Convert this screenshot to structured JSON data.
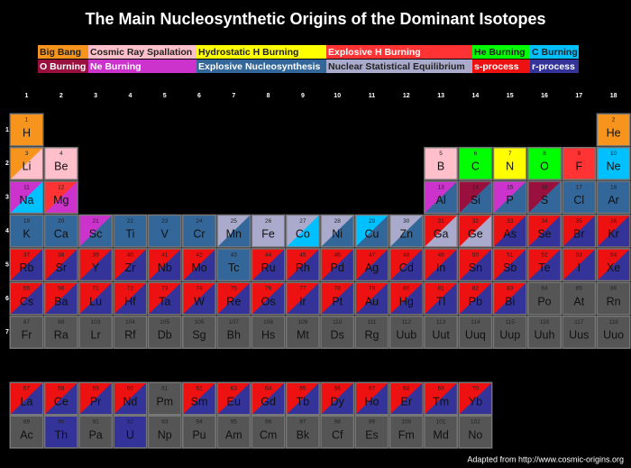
{
  "title": "The Main Nucleosynthetic Origins of the Dominant Isotopes",
  "legend": [
    {
      "label": "Big Bang",
      "color": "#f7941d"
    },
    {
      "label": "Cosmic Ray Spallation",
      "color": "#ffc0cb"
    },
    {
      "label": "Hydrostatic H Burning",
      "color": "#ffff00"
    },
    {
      "label": "Explosive H Burning",
      "color": "#ff3333"
    },
    {
      "label": "He Burning",
      "color": "#00ff00"
    },
    {
      "label": "C Burning",
      "color": "#00c0ff"
    },
    {
      "label": "O Burning",
      "color": "#990f3d"
    },
    {
      "label": "Ne Burning",
      "color": "#cc33cc"
    },
    {
      "label": "Explosive Nucleosynthesis",
      "color": "#336699"
    },
    {
      "label": "Nuclear Statistical Equilibrium",
      "color": "#aaaacc"
    },
    {
      "label": "s-process",
      "color": "#ee1111"
    },
    {
      "label": "r-process",
      "color": "#333399"
    }
  ],
  "groups": [
    1,
    2,
    3,
    4,
    5,
    6,
    7,
    8,
    9,
    10,
    11,
    12,
    13,
    14,
    15,
    16,
    17,
    18
  ],
  "periods": [
    1,
    2,
    3,
    4,
    5,
    6,
    7
  ],
  "elements": [
    {
      "n": 1,
      "s": "H",
      "c": [
        "#f7941d"
      ]
    },
    {
      "n": 2,
      "s": "He",
      "c": [
        "#f7941d"
      ]
    },
    {
      "n": 3,
      "s": "Li",
      "c": [
        "#f7941d",
        "#ffc0cb"
      ]
    },
    {
      "n": 4,
      "s": "Be",
      "c": [
        "#ffc0cb"
      ]
    },
    {
      "n": 5,
      "s": "B",
      "c": [
        "#ffc0cb"
      ]
    },
    {
      "n": 6,
      "s": "C",
      "c": [
        "#00ff00"
      ]
    },
    {
      "n": 7,
      "s": "N",
      "c": [
        "#ffff00"
      ]
    },
    {
      "n": 8,
      "s": "O",
      "c": [
        "#00ff00"
      ]
    },
    {
      "n": 9,
      "s": "F",
      "c": [
        "#ff3333"
      ]
    },
    {
      "n": 10,
      "s": "Ne",
      "c": [
        "#00c0ff"
      ]
    },
    {
      "n": 11,
      "s": "Na",
      "c": [
        "#cc33cc",
        "#00c0ff"
      ]
    },
    {
      "n": 12,
      "s": "Mg",
      "c": [
        "#ff3333",
        "#cc33cc"
      ]
    },
    {
      "n": 13,
      "s": "Al",
      "c": [
        "#cc33cc",
        "#336699"
      ]
    },
    {
      "n": 14,
      "s": "Si",
      "c": [
        "#990f3d",
        "#336699"
      ]
    },
    {
      "n": 15,
      "s": "P",
      "c": [
        "#cc33cc",
        "#336699"
      ]
    },
    {
      "n": 16,
      "s": "S",
      "c": [
        "#990f3d",
        "#336699"
      ]
    },
    {
      "n": 17,
      "s": "Cl",
      "c": [
        "#336699"
      ]
    },
    {
      "n": 18,
      "s": "Ar",
      "c": [
        "#336699"
      ]
    },
    {
      "n": 19,
      "s": "K",
      "c": [
        "#336699"
      ]
    },
    {
      "n": 20,
      "s": "Ca",
      "c": [
        "#336699"
      ]
    },
    {
      "n": 21,
      "s": "Sc",
      "c": [
        "#cc33cc",
        "#336699"
      ]
    },
    {
      "n": 22,
      "s": "Ti",
      "c": [
        "#336699"
      ]
    },
    {
      "n": 23,
      "s": "V",
      "c": [
        "#336699"
      ]
    },
    {
      "n": 24,
      "s": "Cr",
      "c": [
        "#336699"
      ]
    },
    {
      "n": 25,
      "s": "Mn",
      "c": [
        "#aaaacc",
        "#336699"
      ]
    },
    {
      "n": 26,
      "s": "Fe",
      "c": [
        "#aaaacc"
      ]
    },
    {
      "n": 27,
      "s": "Co",
      "c": [
        "#aaaacc",
        "#00c0ff"
      ]
    },
    {
      "n": 28,
      "s": "Ni",
      "c": [
        "#aaaacc",
        "#336699"
      ]
    },
    {
      "n": 29,
      "s": "Cu",
      "c": [
        "#00c0ff",
        "#336699"
      ]
    },
    {
      "n": 30,
      "s": "Zn",
      "c": [
        "#aaaacc",
        "#336699"
      ]
    },
    {
      "n": 31,
      "s": "Ga",
      "c": [
        "#ee1111",
        "#aaaacc"
      ]
    },
    {
      "n": 32,
      "s": "Ge",
      "c": [
        "#ee1111",
        "#aaaacc"
      ]
    },
    {
      "n": 33,
      "s": "As",
      "c": [
        "#ee1111",
        "#333399"
      ]
    },
    {
      "n": 34,
      "s": "Se",
      "c": [
        "#ee1111",
        "#333399"
      ]
    },
    {
      "n": 35,
      "s": "Br",
      "c": [
        "#ee1111",
        "#333399"
      ]
    },
    {
      "n": 36,
      "s": "Kr",
      "c": [
        "#ee1111",
        "#333399"
      ]
    },
    {
      "n": 37,
      "s": "Rb",
      "c": [
        "#ee1111",
        "#333399"
      ]
    },
    {
      "n": 38,
      "s": "Sr",
      "c": [
        "#ee1111",
        "#333399"
      ]
    },
    {
      "n": 39,
      "s": "Y",
      "c": [
        "#ee1111",
        "#333399"
      ]
    },
    {
      "n": 40,
      "s": "Zr",
      "c": [
        "#ee1111",
        "#333399"
      ]
    },
    {
      "n": 41,
      "s": "Nb",
      "c": [
        "#ee1111",
        "#333399"
      ]
    },
    {
      "n": 42,
      "s": "Mo",
      "c": [
        "#ee1111",
        "#333399"
      ]
    },
    {
      "n": 43,
      "s": "Tc",
      "c": [
        "#336699"
      ]
    },
    {
      "n": 44,
      "s": "Ru",
      "c": [
        "#ee1111",
        "#333399"
      ]
    },
    {
      "n": 45,
      "s": "Rh",
      "c": [
        "#ee1111",
        "#333399"
      ]
    },
    {
      "n": 46,
      "s": "Pd",
      "c": [
        "#ee1111",
        "#333399"
      ]
    },
    {
      "n": 47,
      "s": "Ag",
      "c": [
        "#ee1111",
        "#333399"
      ]
    },
    {
      "n": 48,
      "s": "Cd",
      "c": [
        "#ee1111",
        "#333399"
      ]
    },
    {
      "n": 49,
      "s": "In",
      "c": [
        "#ee1111",
        "#333399"
      ]
    },
    {
      "n": 50,
      "s": "Sn",
      "c": [
        "#ee1111",
        "#333399"
      ]
    },
    {
      "n": 51,
      "s": "Sb",
      "c": [
        "#ee1111",
        "#333399"
      ]
    },
    {
      "n": 52,
      "s": "Te",
      "c": [
        "#ee1111",
        "#333399"
      ]
    },
    {
      "n": 53,
      "s": "I",
      "c": [
        "#ee1111",
        "#333399"
      ]
    },
    {
      "n": 54,
      "s": "Xe",
      "c": [
        "#ee1111",
        "#333399"
      ]
    },
    {
      "n": 55,
      "s": "Cs",
      "c": [
        "#ee1111",
        "#333399"
      ]
    },
    {
      "n": 56,
      "s": "Ba",
      "c": [
        "#ee1111",
        "#333399"
      ]
    },
    {
      "n": 57,
      "s": "La",
      "c": [
        "#ee1111",
        "#333399"
      ]
    },
    {
      "n": 58,
      "s": "Ce",
      "c": [
        "#ee1111",
        "#333399"
      ]
    },
    {
      "n": 59,
      "s": "Pr",
      "c": [
        "#ee1111",
        "#333399"
      ]
    },
    {
      "n": 60,
      "s": "Nd",
      "c": [
        "#ee1111",
        "#333399"
      ]
    },
    {
      "n": 61,
      "s": "Pm",
      "c": [
        "#555555"
      ]
    },
    {
      "n": 62,
      "s": "Sm",
      "c": [
        "#ee1111",
        "#333399"
      ]
    },
    {
      "n": 63,
      "s": "Eu",
      "c": [
        "#ee1111",
        "#333399"
      ]
    },
    {
      "n": 64,
      "s": "Gd",
      "c": [
        "#ee1111",
        "#333399"
      ]
    },
    {
      "n": 65,
      "s": "Tb",
      "c": [
        "#ee1111",
        "#333399"
      ]
    },
    {
      "n": 66,
      "s": "Dy",
      "c": [
        "#ee1111",
        "#333399"
      ]
    },
    {
      "n": 67,
      "s": "Ho",
      "c": [
        "#ee1111",
        "#333399"
      ]
    },
    {
      "n": 68,
      "s": "Er",
      "c": [
        "#ee1111",
        "#333399"
      ]
    },
    {
      "n": 69,
      "s": "Tm",
      "c": [
        "#ee1111",
        "#333399"
      ]
    },
    {
      "n": 70,
      "s": "Yb",
      "c": [
        "#ee1111",
        "#333399"
      ]
    },
    {
      "n": 71,
      "s": "Lu",
      "c": [
        "#ee1111",
        "#333399"
      ]
    },
    {
      "n": 72,
      "s": "Hf",
      "c": [
        "#ee1111",
        "#333399"
      ]
    },
    {
      "n": 73,
      "s": "Ta",
      "c": [
        "#ee1111",
        "#333399"
      ]
    },
    {
      "n": 74,
      "s": "W",
      "c": [
        "#ee1111",
        "#333399"
      ]
    },
    {
      "n": 75,
      "s": "Re",
      "c": [
        "#ee1111",
        "#333399"
      ]
    },
    {
      "n": 76,
      "s": "Os",
      "c": [
        "#ee1111",
        "#333399"
      ]
    },
    {
      "n": 77,
      "s": "Ir",
      "c": [
        "#ee1111",
        "#333399"
      ]
    },
    {
      "n": 78,
      "s": "Pt",
      "c": [
        "#ee1111",
        "#333399"
      ]
    },
    {
      "n": 79,
      "s": "Au",
      "c": [
        "#ee1111",
        "#333399"
      ]
    },
    {
      "n": 80,
      "s": "Hg",
      "c": [
        "#ee1111",
        "#333399"
      ]
    },
    {
      "n": 81,
      "s": "Tl",
      "c": [
        "#ee1111",
        "#333399"
      ]
    },
    {
      "n": 82,
      "s": "Pb",
      "c": [
        "#ee1111",
        "#333399"
      ]
    },
    {
      "n": 83,
      "s": "Bi",
      "c": [
        "#ee1111",
        "#333399"
      ]
    },
    {
      "n": 84,
      "s": "Po",
      "c": [
        "#555555"
      ]
    },
    {
      "n": 85,
      "s": "At",
      "c": [
        "#555555"
      ]
    },
    {
      "n": 86,
      "s": "Rn",
      "c": [
        "#555555"
      ]
    },
    {
      "n": 87,
      "s": "Fr",
      "c": [
        "#555555"
      ]
    },
    {
      "n": 88,
      "s": "Ra",
      "c": [
        "#555555"
      ]
    },
    {
      "n": 89,
      "s": "Ac",
      "c": [
        "#555555"
      ]
    },
    {
      "n": 90,
      "s": "Th",
      "c": [
        "#333399"
      ]
    },
    {
      "n": 91,
      "s": "Pa",
      "c": [
        "#555555"
      ]
    },
    {
      "n": 92,
      "s": "U",
      "c": [
        "#333399"
      ]
    },
    {
      "n": 93,
      "s": "Np",
      "c": [
        "#555555"
      ]
    },
    {
      "n": 94,
      "s": "Pu",
      "c": [
        "#555555"
      ]
    },
    {
      "n": 95,
      "s": "Am",
      "c": [
        "#555555"
      ]
    },
    {
      "n": 96,
      "s": "Cm",
      "c": [
        "#555555"
      ]
    },
    {
      "n": 97,
      "s": "Bk",
      "c": [
        "#555555"
      ]
    },
    {
      "n": 98,
      "s": "Cf",
      "c": [
        "#555555"
      ]
    },
    {
      "n": 99,
      "s": "Es",
      "c": [
        "#555555"
      ]
    },
    {
      "n": 100,
      "s": "Fm",
      "c": [
        "#555555"
      ]
    },
    {
      "n": 101,
      "s": "Md",
      "c": [
        "#555555"
      ]
    },
    {
      "n": 102,
      "s": "No",
      "c": [
        "#555555"
      ]
    },
    {
      "n": 103,
      "s": "Lr",
      "c": [
        "#555555"
      ]
    },
    {
      "n": 104,
      "s": "Rf",
      "c": [
        "#555555"
      ]
    },
    {
      "n": 105,
      "s": "Db",
      "c": [
        "#555555"
      ]
    },
    {
      "n": 106,
      "s": "Sg",
      "c": [
        "#555555"
      ]
    },
    {
      "n": 107,
      "s": "Bh",
      "c": [
        "#555555"
      ]
    },
    {
      "n": 108,
      "s": "Hs",
      "c": [
        "#555555"
      ]
    },
    {
      "n": 109,
      "s": "Mt",
      "c": [
        "#555555"
      ]
    },
    {
      "n": 110,
      "s": "Ds",
      "c": [
        "#555555"
      ]
    },
    {
      "n": 111,
      "s": "Rg",
      "c": [
        "#555555"
      ]
    },
    {
      "n": 112,
      "s": "Uub",
      "c": [
        "#555555"
      ]
    },
    {
      "n": 113,
      "s": "Uut",
      "c": [
        "#555555"
      ]
    },
    {
      "n": 114,
      "s": "Uuq",
      "c": [
        "#555555"
      ]
    },
    {
      "n": 115,
      "s": "Uup",
      "c": [
        "#555555"
      ]
    },
    {
      "n": 116,
      "s": "Uuh",
      "c": [
        "#555555"
      ]
    },
    {
      "n": 117,
      "s": "Uus",
      "c": [
        "#555555"
      ]
    },
    {
      "n": 118,
      "s": "Uuo",
      "c": [
        "#555555"
      ]
    }
  ],
  "footer": "Adapted from http://www.cosmic-origins.org"
}
